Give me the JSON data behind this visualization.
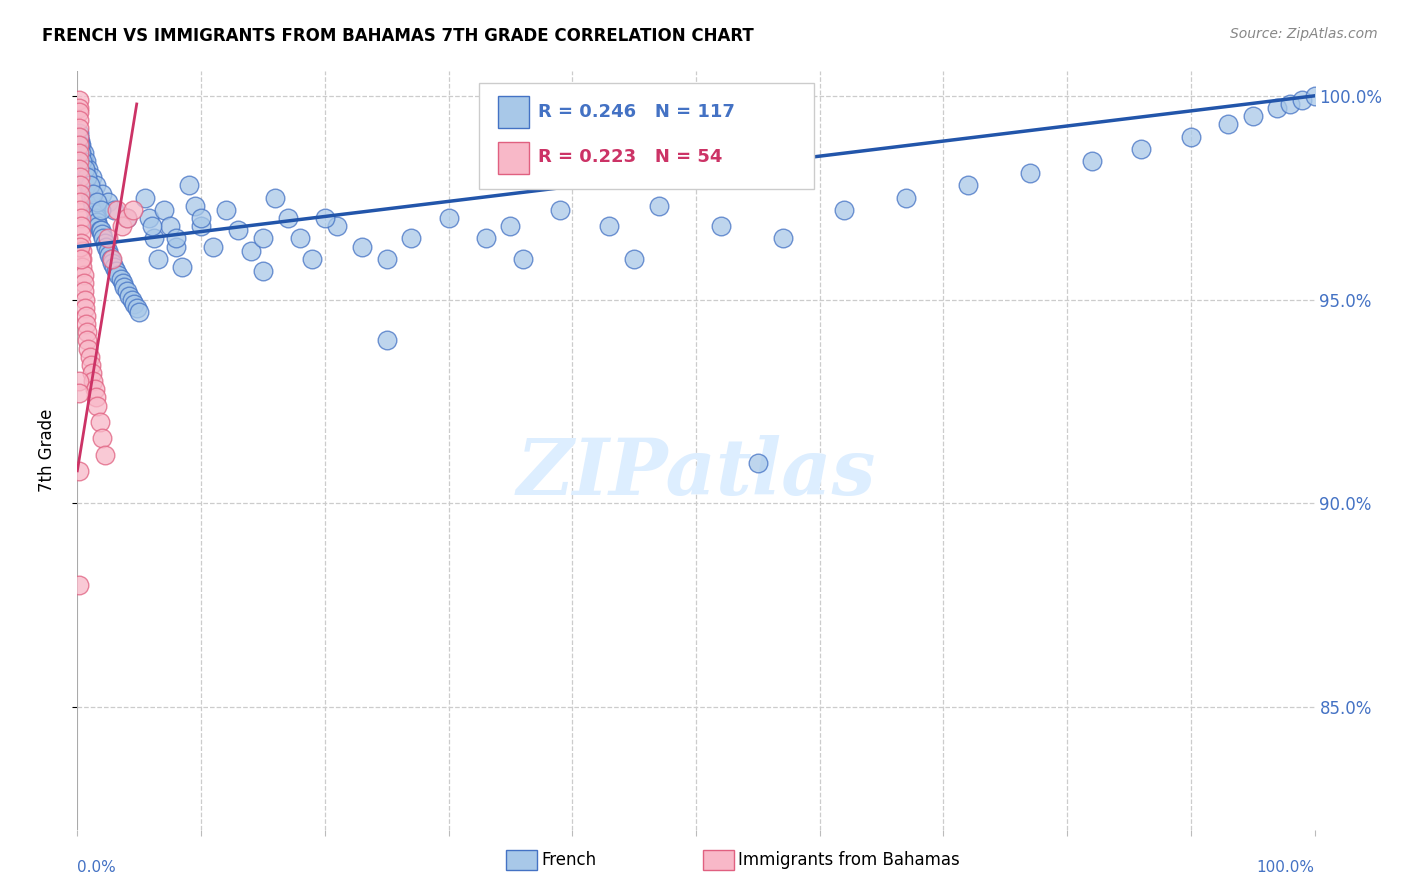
{
  "title": "FRENCH VS IMMIGRANTS FROM BAHAMAS 7TH GRADE CORRELATION CHART",
  "source": "Source: ZipAtlas.com",
  "ylabel": "7th Grade",
  "legend_blue": {
    "label": "French",
    "R": "0.246",
    "N": "117"
  },
  "legend_pink": {
    "label": "Immigrants from Bahamas",
    "R": "0.223",
    "N": "54"
  },
  "blue_color": "#a8c8e8",
  "pink_color": "#f8b8c8",
  "blue_edge_color": "#4472c4",
  "pink_edge_color": "#e06080",
  "blue_line_color": "#2255aa",
  "pink_line_color": "#cc3366",
  "blue_scatter_x": [
    0.001,
    0.002,
    0.003,
    0.004,
    0.005,
    0.005,
    0.006,
    0.007,
    0.008,
    0.008,
    0.009,
    0.01,
    0.01,
    0.011,
    0.012,
    0.013,
    0.013,
    0.014,
    0.015,
    0.015,
    0.016,
    0.017,
    0.018,
    0.019,
    0.02,
    0.021,
    0.022,
    0.023,
    0.025,
    0.026,
    0.027,
    0.028,
    0.03,
    0.031,
    0.033,
    0.035,
    0.037,
    0.038,
    0.04,
    0.042,
    0.044,
    0.046,
    0.048,
    0.05,
    0.055,
    0.058,
    0.062,
    0.065,
    0.07,
    0.075,
    0.08,
    0.085,
    0.09,
    0.095,
    0.1,
    0.11,
    0.12,
    0.13,
    0.14,
    0.15,
    0.16,
    0.17,
    0.18,
    0.19,
    0.21,
    0.23,
    0.25,
    0.27,
    0.3,
    0.33,
    0.36,
    0.39,
    0.43,
    0.47,
    0.52,
    0.57,
    0.62,
    0.67,
    0.72,
    0.77,
    0.82,
    0.86,
    0.9,
    0.93,
    0.95,
    0.97,
    0.98,
    0.99,
    1.0,
    0.003,
    0.005,
    0.007,
    0.009,
    0.012,
    0.015,
    0.02,
    0.025,
    0.03,
    0.04,
    0.06,
    0.08,
    0.1,
    0.15,
    0.2,
    0.25,
    0.35,
    0.45,
    0.55,
    0.001,
    0.002,
    0.003,
    0.004,
    0.006,
    0.008,
    0.01,
    0.013,
    0.016,
    0.019
  ],
  "blue_scatter_y": [
    0.991,
    0.989,
    0.987,
    0.985,
    0.984,
    0.983,
    0.982,
    0.981,
    0.98,
    0.979,
    0.978,
    0.977,
    0.976,
    0.975,
    0.974,
    0.974,
    0.973,
    0.972,
    0.971,
    0.97,
    0.969,
    0.968,
    0.967,
    0.967,
    0.966,
    0.965,
    0.964,
    0.963,
    0.962,
    0.961,
    0.96,
    0.959,
    0.958,
    0.957,
    0.956,
    0.955,
    0.954,
    0.953,
    0.952,
    0.951,
    0.95,
    0.949,
    0.948,
    0.947,
    0.975,
    0.97,
    0.965,
    0.96,
    0.972,
    0.968,
    0.963,
    0.958,
    0.978,
    0.973,
    0.968,
    0.963,
    0.972,
    0.967,
    0.962,
    0.957,
    0.975,
    0.97,
    0.965,
    0.96,
    0.968,
    0.963,
    0.96,
    0.965,
    0.97,
    0.965,
    0.96,
    0.972,
    0.968,
    0.973,
    0.968,
    0.965,
    0.972,
    0.975,
    0.978,
    0.981,
    0.984,
    0.987,
    0.99,
    0.993,
    0.995,
    0.997,
    0.998,
    0.999,
    1.0,
    0.988,
    0.986,
    0.984,
    0.982,
    0.98,
    0.978,
    0.976,
    0.974,
    0.972,
    0.97,
    0.968,
    0.965,
    0.97,
    0.965,
    0.97,
    0.94,
    0.968,
    0.96,
    0.91,
    0.99,
    0.988,
    0.986,
    0.984,
    0.982,
    0.98,
    0.978,
    0.976,
    0.974,
    0.972
  ],
  "pink_scatter_x": [
    0.001,
    0.001,
    0.001,
    0.001,
    0.001,
    0.001,
    0.001,
    0.001,
    0.001,
    0.001,
    0.002,
    0.002,
    0.002,
    0.002,
    0.002,
    0.003,
    0.003,
    0.003,
    0.003,
    0.004,
    0.004,
    0.004,
    0.005,
    0.005,
    0.005,
    0.006,
    0.006,
    0.007,
    0.007,
    0.008,
    0.008,
    0.009,
    0.01,
    0.011,
    0.012,
    0.013,
    0.014,
    0.015,
    0.016,
    0.018,
    0.02,
    0.022,
    0.025,
    0.028,
    0.032,
    0.036,
    0.04,
    0.045,
    0.001,
    0.001,
    0.002,
    0.003,
    0.001,
    0.001
  ],
  "pink_scatter_y": [
    0.999,
    0.997,
    0.996,
    0.994,
    0.992,
    0.99,
    0.988,
    0.986,
    0.984,
    0.982,
    0.98,
    0.978,
    0.976,
    0.974,
    0.972,
    0.97,
    0.968,
    0.966,
    0.964,
    0.962,
    0.96,
    0.958,
    0.956,
    0.954,
    0.952,
    0.95,
    0.948,
    0.946,
    0.944,
    0.942,
    0.94,
    0.938,
    0.936,
    0.934,
    0.932,
    0.93,
    0.928,
    0.926,
    0.924,
    0.92,
    0.916,
    0.912,
    0.965,
    0.96,
    0.972,
    0.968,
    0.97,
    0.972,
    0.93,
    0.927,
    0.963,
    0.96,
    0.88,
    0.908
  ],
  "blue_trend_x": [
    0.0,
    1.0
  ],
  "blue_trend_y": [
    0.963,
    1.0
  ],
  "pink_trend_x": [
    0.0,
    0.048
  ],
  "pink_trend_y": [
    0.908,
    0.998
  ],
  "watermark": "ZIPatlas",
  "xlim": [
    0.0,
    1.0
  ],
  "ylim": [
    0.82,
    1.006
  ],
  "ytick_vals": [
    0.85,
    0.9,
    0.95,
    1.0
  ],
  "ytick_labels": [
    "85.0%",
    "90.0%",
    "95.0%",
    "100.0%"
  ],
  "xtick_vals": [
    0.0,
    0.1,
    0.2,
    0.3,
    0.4,
    0.5,
    0.6,
    0.7,
    0.8,
    0.9,
    1.0
  ],
  "bottom_legend_x": [
    "French",
    "Immigrants from Bahamas"
  ]
}
